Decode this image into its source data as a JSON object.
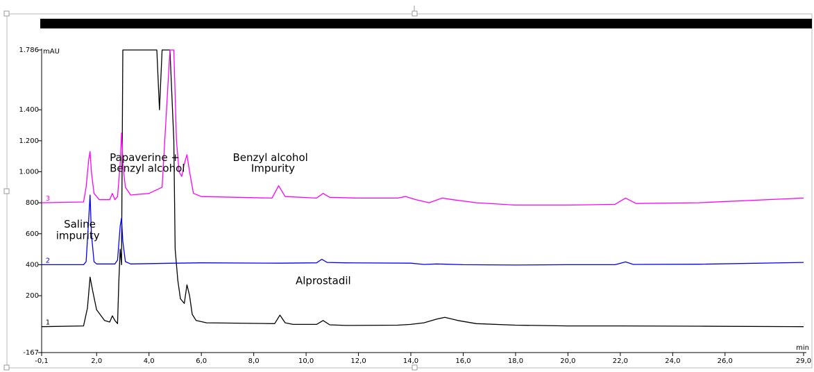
{
  "chart_data": {
    "type": "line",
    "xlabel": "min",
    "ylabel": "mAU",
    "xlim": [
      -0.1,
      29.0
    ],
    "ylim": [
      -167,
      1786
    ],
    "x_ticks": [
      {
        "v": -0.1,
        "label": "-0,1"
      },
      {
        "v": 2.0,
        "label": "2,0"
      },
      {
        "v": 4.0,
        "label": "4,0"
      },
      {
        "v": 6.0,
        "label": "6,0"
      },
      {
        "v": 8.0,
        "label": "8,0"
      },
      {
        "v": 10.0,
        "label": "10,0"
      },
      {
        "v": 12.0,
        "label": "12,0"
      },
      {
        "v": 14.0,
        "label": "14,0"
      },
      {
        "v": 16.0,
        "label": "16,0"
      },
      {
        "v": 18.0,
        "label": "18,0"
      },
      {
        "v": 20.0,
        "label": "20,0"
      },
      {
        "v": 22.0,
        "label": "22,0"
      },
      {
        "v": 24.0,
        "label": "24,0"
      },
      {
        "v": 26.0,
        "label": "26,0"
      },
      {
        "v": 29.0,
        "label": "29,0"
      }
    ],
    "y_ticks": [
      {
        "v": -167,
        "label": "-167"
      },
      {
        "v": 200,
        "label": "200"
      },
      {
        "v": 400,
        "label": "400"
      },
      {
        "v": 600,
        "label": "600"
      },
      {
        "v": 800,
        "label": "800"
      },
      {
        "v": 1000,
        "label": "1.000"
      },
      {
        "v": 1200,
        "label": "1.200"
      },
      {
        "v": 1400,
        "label": "1.400"
      },
      {
        "v": 1786,
        "label": "1.786"
      }
    ],
    "series": [
      {
        "name": "1",
        "color": "#000000",
        "label_x": 0.0,
        "label_y": 0,
        "points": [
          [
            -0.1,
            0
          ],
          [
            1.5,
            5
          ],
          [
            1.65,
            120
          ],
          [
            1.75,
            320
          ],
          [
            1.85,
            230
          ],
          [
            2.0,
            110
          ],
          [
            2.3,
            40
          ],
          [
            2.5,
            30
          ],
          [
            2.6,
            70
          ],
          [
            2.7,
            40
          ],
          [
            2.8,
            20
          ],
          [
            2.85,
            300
          ],
          [
            2.9,
            500
          ],
          [
            2.95,
            400
          ],
          [
            3.0,
            1786
          ],
          [
            3.05,
            1786
          ],
          [
            3.2,
            1786
          ],
          [
            3.4,
            1786
          ],
          [
            3.8,
            1786
          ],
          [
            4.2,
            1786
          ],
          [
            4.3,
            1786
          ],
          [
            4.4,
            1400
          ],
          [
            4.5,
            1786
          ],
          [
            4.6,
            1786
          ],
          [
            4.8,
            1786
          ],
          [
            4.95,
            1200
          ],
          [
            5.0,
            500
          ],
          [
            5.1,
            300
          ],
          [
            5.2,
            180
          ],
          [
            5.35,
            150
          ],
          [
            5.45,
            270
          ],
          [
            5.55,
            200
          ],
          [
            5.65,
            80
          ],
          [
            5.8,
            40
          ],
          [
            6.2,
            25
          ],
          [
            8.8,
            20
          ],
          [
            9.0,
            75
          ],
          [
            9.2,
            25
          ],
          [
            9.5,
            15
          ],
          [
            10.4,
            15
          ],
          [
            10.65,
            40
          ],
          [
            10.9,
            12
          ],
          [
            11.5,
            8
          ],
          [
            13.5,
            10
          ],
          [
            14.0,
            15
          ],
          [
            14.5,
            25
          ],
          [
            15.0,
            50
          ],
          [
            15.3,
            60
          ],
          [
            15.8,
            40
          ],
          [
            16.5,
            20
          ],
          [
            18.0,
            10
          ],
          [
            20.0,
            5
          ],
          [
            22.0,
            5
          ],
          [
            25.0,
            3
          ],
          [
            29.0,
            0
          ]
        ]
      },
      {
        "name": "2",
        "color": "#0000ff",
        "label_x": 0.0,
        "label_y": 400,
        "points": [
          [
            -0.1,
            400
          ],
          [
            1.5,
            400
          ],
          [
            1.6,
            420
          ],
          [
            1.7,
            700
          ],
          [
            1.75,
            850
          ],
          [
            1.8,
            600
          ],
          [
            1.9,
            420
          ],
          [
            2.0,
            405
          ],
          [
            2.7,
            405
          ],
          [
            2.8,
            430
          ],
          [
            2.9,
            650
          ],
          [
            2.95,
            700
          ],
          [
            3.0,
            550
          ],
          [
            3.1,
            420
          ],
          [
            3.3,
            405
          ],
          [
            5.0,
            410
          ],
          [
            6.0,
            412
          ],
          [
            9.0,
            410
          ],
          [
            10.4,
            412
          ],
          [
            10.6,
            435
          ],
          [
            10.8,
            415
          ],
          [
            11.5,
            412
          ],
          [
            14.0,
            410
          ],
          [
            14.5,
            402
          ],
          [
            15.0,
            405
          ],
          [
            16.0,
            400
          ],
          [
            18.0,
            398
          ],
          [
            20.0,
            400
          ],
          [
            21.8,
            400
          ],
          [
            22.2,
            418
          ],
          [
            22.5,
            402
          ],
          [
            25.0,
            403
          ],
          [
            29.0,
            415
          ]
        ]
      },
      {
        "name": "3",
        "color": "#ff00ff",
        "label_x": 0.0,
        "label_y": 800,
        "points": [
          [
            -0.1,
            800
          ],
          [
            1.5,
            805
          ],
          [
            1.6,
            900
          ],
          [
            1.7,
            1080
          ],
          [
            1.75,
            1130
          ],
          [
            1.8,
            1000
          ],
          [
            1.9,
            860
          ],
          [
            2.1,
            820
          ],
          [
            2.5,
            820
          ],
          [
            2.6,
            860
          ],
          [
            2.7,
            820
          ],
          [
            2.8,
            840
          ],
          [
            2.9,
            1050
          ],
          [
            2.95,
            1250
          ],
          [
            3.0,
            1050
          ],
          [
            3.1,
            900
          ],
          [
            3.3,
            850
          ],
          [
            4.0,
            860
          ],
          [
            4.5,
            900
          ],
          [
            4.8,
            1786
          ],
          [
            4.95,
            1786
          ],
          [
            5.05,
            1200
          ],
          [
            5.15,
            1000
          ],
          [
            5.25,
            970
          ],
          [
            5.35,
            1050
          ],
          [
            5.45,
            1110
          ],
          [
            5.55,
            1000
          ],
          [
            5.7,
            860
          ],
          [
            6.0,
            840
          ],
          [
            8.7,
            830
          ],
          [
            8.95,
            910
          ],
          [
            9.2,
            840
          ],
          [
            10.4,
            830
          ],
          [
            10.65,
            860
          ],
          [
            10.9,
            835
          ],
          [
            12.0,
            830
          ],
          [
            13.5,
            830
          ],
          [
            13.8,
            840
          ],
          [
            14.2,
            820
          ],
          [
            14.7,
            800
          ],
          [
            15.2,
            830
          ],
          [
            15.6,
            820
          ],
          [
            16.5,
            800
          ],
          [
            18.0,
            785
          ],
          [
            20.0,
            785
          ],
          [
            21.8,
            790
          ],
          [
            22.2,
            830
          ],
          [
            22.6,
            795
          ],
          [
            25.0,
            800
          ],
          [
            29.0,
            830
          ]
        ]
      }
    ],
    "annotations": [
      {
        "text": "Papaverine +",
        "x": 2.5,
        "y": 1070
      },
      {
        "text": "Benzyl alcohol",
        "x": 2.5,
        "y": 1000
      },
      {
        "text": "Benzyl alcohol",
        "x": 7.2,
        "y": 1070
      },
      {
        "text": "Impurity",
        "x": 7.9,
        "y": 1000
      },
      {
        "text": "Saline",
        "x": 0.75,
        "y": 640
      },
      {
        "text": "impurity",
        "x": 0.45,
        "y": 565
      },
      {
        "text": "Alprostadil",
        "x": 9.6,
        "y": 275
      }
    ],
    "grid": false,
    "legend": "none"
  }
}
